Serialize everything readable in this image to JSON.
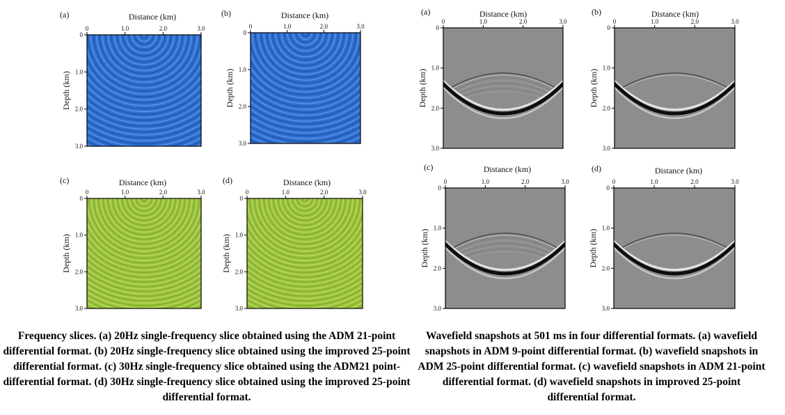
{
  "panels": [
    {
      "id": "left-a",
      "letter": "(a)",
      "xlabel": "Distance (km)",
      "ylabel": "Depth (km)",
      "xticks": [
        "0",
        "1.0",
        "2.0",
        "3.0"
      ],
      "yticks": [
        "0",
        "1.0",
        "2.0",
        "3.0"
      ],
      "kind": "frequency-slice",
      "color": "#2f6fd0"
    },
    {
      "id": "left-b",
      "letter": "(b)",
      "xlabel": "Distance (km)",
      "ylabel": "Depth (km)",
      "xticks": [
        "0",
        "1.0",
        "2.0",
        "3.0"
      ],
      "yticks": [
        "0",
        "1.0",
        "2.0",
        "3.0"
      ],
      "kind": "frequency-slice",
      "color": "#2f6fd0"
    },
    {
      "id": "left-c",
      "letter": "(c)",
      "xlabel": "Distance (km)",
      "ylabel": "Depth (km)",
      "xticks": [
        "0",
        "1.0",
        "2.0",
        "3.0"
      ],
      "yticks": [
        "0",
        "1.0",
        "2.0",
        "3.0"
      ],
      "kind": "frequency-slice",
      "color": "#9bc23c"
    },
    {
      "id": "left-d",
      "letter": "(d)",
      "xlabel": "Distance (km)",
      "ylabel": "Depth (km)",
      "xticks": [
        "0",
        "1.0",
        "2.0",
        "3.0"
      ],
      "yticks": [
        "0",
        "1.0",
        "2.0",
        "3.0"
      ],
      "kind": "frequency-slice",
      "color": "#9bc23c"
    },
    {
      "id": "right-a",
      "letter": "(a)",
      "xlabel": "Distance (km)",
      "ylabel": "Depth (km)",
      "xticks": [
        "0",
        "1.0",
        "2.0",
        "3.0"
      ],
      "yticks": [
        "0",
        "1.0",
        "2.0",
        "3.0"
      ],
      "kind": "wavefield-snapshot",
      "color": "#8c8c8c"
    },
    {
      "id": "right-b",
      "letter": "(b)",
      "xlabel": "Distance (km)",
      "ylabel": "Depth (km)",
      "xticks": [
        "0",
        "1.0",
        "2.0",
        "3.0"
      ],
      "yticks": [
        "0",
        "1.0",
        "2.0",
        "3.0"
      ],
      "kind": "wavefield-snapshot",
      "color": "#8c8c8c"
    },
    {
      "id": "right-c",
      "letter": "(c)",
      "xlabel": "Distance (km)",
      "ylabel": "Depth (km)",
      "xticks": [
        "0",
        "1.0",
        "2.0",
        "3.0"
      ],
      "yticks": [
        "0",
        "1.0",
        "2.0",
        "3.0"
      ],
      "kind": "wavefield-snapshot",
      "color": "#8c8c8c"
    },
    {
      "id": "right-d",
      "letter": "(d)",
      "xlabel": "Distance (km)",
      "ylabel": "Depth (km)",
      "xticks": [
        "0",
        "1.0",
        "2.0",
        "3.0"
      ],
      "yticks": [
        "0",
        "1.0",
        "2.0",
        "3.0"
      ],
      "kind": "wavefield-snapshot",
      "color": "#8c8c8c"
    }
  ],
  "captions": {
    "left": "Frequency slices. (a) 20Hz single-frequency slice obtained using the ADM 21-point differential format. (b) 20Hz single-frequency slice obtained using the improved 25-point differential format. (c) 30Hz single-frequency slice obtained using the ADM21 point-differential format. (d) 30Hz single-frequency slice obtained using the improved 25-point differential format.",
    "right": "Wavefield snapshots at 501 ms in four differential formats. (a) wavefield snapshots in ADM 9-point differential format. (b) wavefield snapshots in ADM 25-point differential format. (c) wavefield snapshots in ADM 21-point differential format. (d) wavefield snapshots in improved 25-point differential format."
  }
}
